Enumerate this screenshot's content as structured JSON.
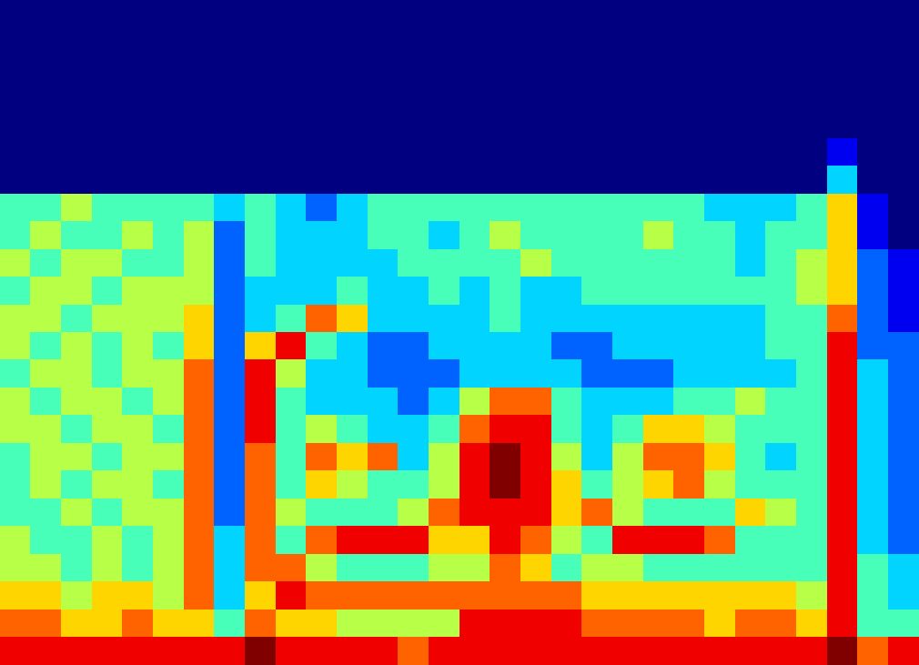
{
  "chart_data": {
    "type": "heatmap",
    "tick_labels": false,
    "color_range": [
      0,
      9
    ],
    "cells": [
      [
        0,
        0,
        0,
        0,
        0,
        0,
        0,
        0,
        0,
        0,
        0,
        0,
        0,
        0,
        0,
        0,
        0,
        0,
        0,
        0,
        0,
        0,
        0,
        0,
        0,
        0,
        0,
        0,
        0,
        0
      ],
      [
        0,
        0,
        0,
        0,
        0,
        0,
        0,
        0,
        0,
        0,
        0,
        0,
        0,
        0,
        0,
        0,
        0,
        0,
        0,
        0,
        0,
        0,
        0,
        0,
        0,
        0,
        0,
        0,
        0,
        0
      ],
      [
        0,
        0,
        0,
        0,
        0,
        0,
        0,
        0,
        0,
        0,
        0,
        0,
        0,
        0,
        0,
        0,
        0,
        0,
        0,
        0,
        0,
        0,
        0,
        0,
        0,
        0,
        0,
        0,
        0,
        0
      ],
      [
        0,
        0,
        0,
        0,
        0,
        0,
        0,
        0,
        0,
        0,
        0,
        0,
        0,
        0,
        0,
        0,
        0,
        0,
        0,
        0,
        0,
        0,
        0,
        0,
        0,
        0,
        0,
        0,
        0,
        0
      ],
      [
        0,
        0,
        0,
        0,
        0,
        0,
        0,
        0,
        0,
        0,
        0,
        0,
        0,
        0,
        0,
        0,
        0,
        0,
        0,
        0,
        0,
        0,
        0,
        0,
        0,
        0,
        0,
        0,
        0,
        0
      ],
      [
        0,
        0,
        0,
        0,
        0,
        0,
        0,
        0,
        0,
        0,
        0,
        0,
        0,
        0,
        0,
        0,
        0,
        0,
        0,
        0,
        0,
        0,
        0,
        0,
        0,
        0,
        0,
        1,
        0,
        0
      ],
      [
        0,
        0,
        0,
        0,
        0,
        0,
        0,
        0,
        0,
        0,
        0,
        0,
        0,
        0,
        0,
        0,
        0,
        0,
        0,
        0,
        0,
        0,
        0,
        0,
        0,
        0,
        0,
        3,
        0,
        0
      ],
      [
        4,
        4,
        5,
        4,
        4,
        4,
        4,
        3,
        4,
        3,
        2,
        3,
        4,
        4,
        4,
        4,
        4,
        4,
        4,
        4,
        4,
        4,
        4,
        3,
        3,
        3,
        4,
        6,
        1,
        0
      ],
      [
        4,
        5,
        4,
        4,
        5,
        4,
        5,
        2,
        4,
        3,
        3,
        3,
        4,
        4,
        3,
        4,
        5,
        4,
        4,
        4,
        4,
        5,
        4,
        4,
        3,
        4,
        4,
        6,
        1,
        0
      ],
      [
        5,
        4,
        5,
        5,
        4,
        4,
        5,
        2,
        4,
        3,
        3,
        3,
        3,
        4,
        4,
        4,
        4,
        5,
        4,
        4,
        4,
        4,
        4,
        4,
        3,
        4,
        5,
        6,
        2,
        1
      ],
      [
        4,
        5,
        5,
        4,
        5,
        5,
        5,
        2,
        3,
        3,
        3,
        4,
        3,
        3,
        4,
        3,
        4,
        3,
        3,
        4,
        4,
        4,
        4,
        4,
        4,
        4,
        5,
        6,
        2,
        1
      ],
      [
        5,
        5,
        4,
        5,
        5,
        5,
        6,
        2,
        3,
        4,
        7,
        6,
        3,
        3,
        3,
        3,
        4,
        3,
        3,
        3,
        3,
        3,
        3,
        3,
        3,
        4,
        4,
        7,
        2,
        1
      ],
      [
        5,
        4,
        5,
        4,
        5,
        4,
        6,
        2,
        6,
        8,
        4,
        3,
        2,
        2,
        3,
        3,
        3,
        3,
        2,
        2,
        3,
        3,
        3,
        3,
        3,
        4,
        4,
        8,
        2,
        2
      ],
      [
        4,
        5,
        5,
        4,
        5,
        5,
        7,
        2,
        8,
        5,
        3,
        3,
        2,
        2,
        2,
        3,
        3,
        3,
        3,
        2,
        2,
        2,
        3,
        3,
        3,
        3,
        4,
        8,
        3,
        2
      ],
      [
        5,
        4,
        5,
        5,
        4,
        5,
        7,
        2,
        8,
        4,
        3,
        3,
        3,
        2,
        3,
        5,
        7,
        7,
        4,
        3,
        3,
        3,
        4,
        4,
        5,
        4,
        4,
        8,
        3,
        2
      ],
      [
        5,
        5,
        4,
        5,
        5,
        4,
        7,
        2,
        8,
        4,
        5,
        4,
        3,
        3,
        4,
        7,
        8,
        8,
        4,
        3,
        4,
        6,
        6,
        5,
        4,
        4,
        4,
        8,
        3,
        2
      ],
      [
        4,
        5,
        5,
        4,
        5,
        5,
        7,
        2,
        7,
        4,
        7,
        6,
        7,
        3,
        5,
        8,
        9,
        8,
        5,
        3,
        5,
        7,
        7,
        6,
        4,
        3,
        4,
        8,
        3,
        2
      ],
      [
        4,
        5,
        4,
        5,
        5,
        4,
        7,
        2,
        7,
        4,
        6,
        5,
        4,
        4,
        5,
        8,
        9,
        8,
        6,
        4,
        5,
        6,
        7,
        5,
        4,
        4,
        4,
        8,
        3,
        2
      ],
      [
        4,
        4,
        5,
        4,
        5,
        5,
        7,
        2,
        7,
        5,
        4,
        4,
        4,
        5,
        7,
        8,
        8,
        8,
        6,
        7,
        5,
        4,
        4,
        4,
        6,
        5,
        4,
        8,
        3,
        2
      ],
      [
        5,
        4,
        4,
        5,
        4,
        5,
        7,
        3,
        7,
        4,
        7,
        8,
        8,
        8,
        6,
        6,
        8,
        7,
        5,
        4,
        8,
        8,
        8,
        7,
        4,
        4,
        4,
        8,
        3,
        2
      ],
      [
        5,
        5,
        4,
        5,
        4,
        5,
        7,
        3,
        7,
        7,
        5,
        4,
        4,
        4,
        5,
        5,
        7,
        6,
        4,
        5,
        5,
        4,
        4,
        4,
        4,
        4,
        4,
        8,
        4,
        3
      ],
      [
        6,
        6,
        5,
        6,
        6,
        5,
        7,
        3,
        6,
        8,
        7,
        7,
        7,
        7,
        7,
        7,
        7,
        7,
        7,
        6,
        6,
        6,
        6,
        6,
        6,
        6,
        5,
        8,
        4,
        3
      ],
      [
        7,
        7,
        6,
        6,
        7,
        6,
        6,
        4,
        7,
        6,
        6,
        5,
        5,
        5,
        5,
        8,
        8,
        8,
        8,
        7,
        7,
        7,
        7,
        6,
        7,
        7,
        6,
        8,
        4,
        4
      ],
      [
        8,
        8,
        8,
        8,
        8,
        8,
        8,
        8,
        9,
        8,
        8,
        8,
        8,
        7,
        8,
        8,
        8,
        8,
        8,
        8,
        8,
        8,
        8,
        8,
        8,
        8,
        8,
        9,
        7,
        8
      ]
    ]
  }
}
